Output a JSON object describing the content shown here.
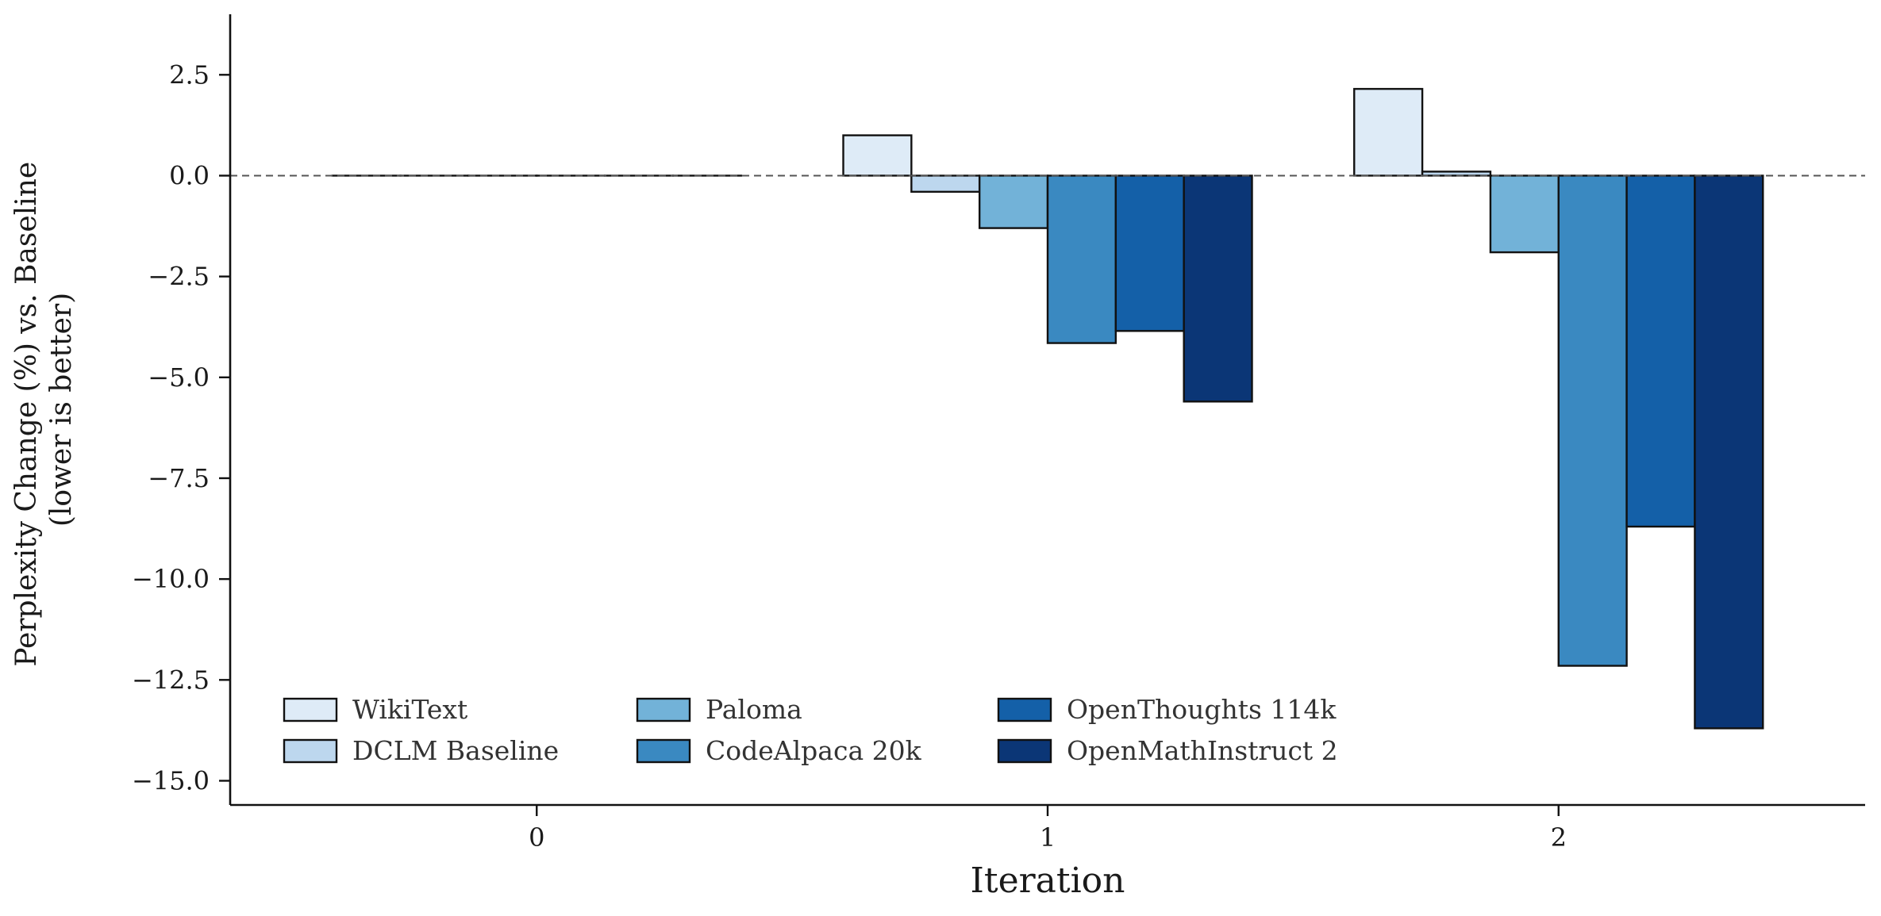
{
  "chart_data": {
    "type": "bar",
    "title": "",
    "xlabel": "Iteration",
    "ylabel": "Perplexity Change (%) vs. Baseline\n(lower is better)",
    "categories": [
      "0",
      "1",
      "2"
    ],
    "ylim": [
      -15.6,
      4.0
    ],
    "yticks": [
      -15.0,
      -12.5,
      -10.0,
      -7.5,
      -5.0,
      -2.5,
      0.0,
      2.5
    ],
    "ytick_labels": [
      "−15.0",
      "−12.5",
      "−10.0",
      "−7.5",
      "−5.0",
      "−2.5",
      "0.0",
      "2.5"
    ],
    "grid": false,
    "baseline_line": {
      "y": 0,
      "style": "dashed"
    },
    "legend": {
      "placement": "lower-left",
      "columns": 3
    },
    "series": [
      {
        "name": "WikiText",
        "color": "#deebf7",
        "values": [
          0.0,
          1.0,
          2.15
        ]
      },
      {
        "name": "DCLM Baseline",
        "color": "#bdd7ee",
        "values": [
          0.0,
          -0.4,
          0.1
        ]
      },
      {
        "name": "Paloma",
        "color": "#72b2d8",
        "values": [
          0.0,
          -1.3,
          -1.9
        ]
      },
      {
        "name": "CodeAlpaca 20k",
        "color": "#3a89c1",
        "values": [
          0.0,
          -4.15,
          -12.15
        ]
      },
      {
        "name": "OpenThoughts 114k",
        "color": "#1460a8",
        "values": [
          0.0,
          -3.85,
          -8.7
        ]
      },
      {
        "name": "OpenMathInstruct 2",
        "color": "#0b3676",
        "values": [
          0.0,
          -5.6,
          -13.7
        ]
      }
    ]
  }
}
